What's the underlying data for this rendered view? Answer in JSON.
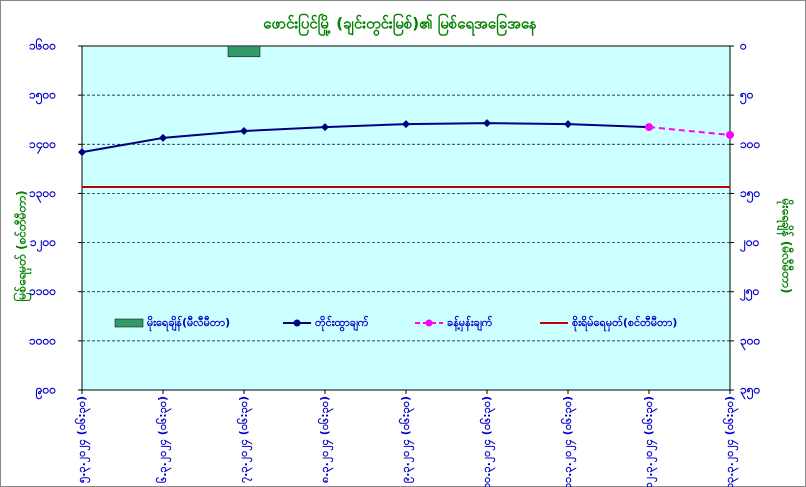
{
  "chart_data": {
    "type": "line",
    "title": "ဖောင်းပြင်မြို့ (ချင်းတွင်းမြစ်)၏ မြစ်ရေအခြေအနေ",
    "y_label": "မြစ်ရေမှတ် (စင်တီမီတာ)",
    "y2_label": "မိုးရေချိန် (မီလီမီတာ)",
    "categories": [
      "၅.၃.၂၀၂၄ (၀၆:၃၀)",
      "၆.၃.၂၀၂၄ (၀၆:၃၀)",
      "၇.၃.၂၀၂၄ (၀၆:၃၀)",
      "၈.၃.၂၀၂၄ (၀၆:၃၀)",
      "၉.၃.၂၀၂၄ (၀၆:၃၀)",
      "၁၀.၃.၂၀၂၄ (၀၆:၃၀)",
      "၁၁.၃.၂၀၂၄ (၀၆:၃၀)",
      "၁၂.၃.၂၀၂၄ (၀၆:၃၀)",
      "၁၃.၃.၂၀၂၄ (၀၆:၃၀)"
    ],
    "series": [
      {
        "name": "မိုးရေချိန်(မီလီမီတာ)",
        "type": "bar",
        "axis": "y2",
        "color": "#339966",
        "values": [
          null,
          null,
          11,
          null,
          null,
          null,
          null,
          null,
          null
        ]
      },
      {
        "name": "တိုင်းထွာချက်",
        "type": "line",
        "color": "#000080",
        "values": [
          1384,
          1413,
          1427,
          1435,
          1441,
          1443,
          1441,
          1435,
          null
        ]
      },
      {
        "name": "ခန့်မှန်းချက်",
        "type": "line",
        "dashed": true,
        "color": "#ff00ff",
        "values": [
          null,
          null,
          null,
          null,
          null,
          null,
          null,
          1435,
          1419
        ]
      },
      {
        "name": "စိုးရိမ်ရေမှတ်(စင်တီမီတာ)",
        "type": "hline",
        "color": "#c00000",
        "value": 1313
      }
    ],
    "ylim": [
      900,
      1600
    ],
    "yticks": [
      {
        "value": 900,
        "label": "၉၀၀"
      },
      {
        "value": 1000,
        "label": "၁၀၀၀"
      },
      {
        "value": 1100,
        "label": "၁၁၀၀"
      },
      {
        "value": 1200,
        "label": "၁၂၀၀"
      },
      {
        "value": 1300,
        "label": "၁၃၀၀"
      },
      {
        "value": 1400,
        "label": "၁၄၀၀"
      },
      {
        "value": 1500,
        "label": "၁၅၀၀"
      },
      {
        "value": 1600,
        "label": "၁၆၀၀"
      }
    ],
    "y2lim": [
      350,
      0
    ],
    "y2ticks": [
      {
        "value": 0,
        "label": "၀"
      },
      {
        "value": 50,
        "label": "၅၀"
      },
      {
        "value": 100,
        "label": "၁၀၀"
      },
      {
        "value": 150,
        "label": "၁၅၀"
      },
      {
        "value": 200,
        "label": "၂၀၀"
      },
      {
        "value": 250,
        "label": "၂၅၀"
      },
      {
        "value": 300,
        "label": "၃၀၀"
      },
      {
        "value": 350,
        "label": "၃၅၀"
      }
    ],
    "grid": true,
    "plot_background": "#ccffff"
  }
}
